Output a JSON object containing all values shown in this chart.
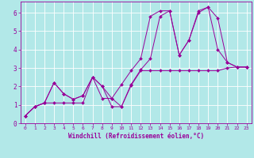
{
  "title": "",
  "xlabel": "Windchill (Refroidissement éolien,°C)",
  "ylabel": "",
  "background_color": "#b2e8e8",
  "grid_color": "#ffffff",
  "line_color": "#990099",
  "marker_color": "#990099",
  "xlim": [
    -0.5,
    23.5
  ],
  "ylim": [
    0,
    6.6
  ],
  "xticks": [
    0,
    1,
    2,
    3,
    4,
    5,
    6,
    7,
    8,
    9,
    10,
    11,
    12,
    13,
    14,
    15,
    16,
    17,
    18,
    19,
    20,
    21,
    22,
    23
  ],
  "yticks": [
    0,
    1,
    2,
    3,
    4,
    5,
    6
  ],
  "series": [
    [
      0.4,
      0.9,
      1.1,
      2.2,
      1.6,
      1.3,
      1.5,
      2.5,
      2.0,
      1.35,
      0.9,
      2.1,
      2.9,
      3.5,
      5.8,
      6.1,
      3.7,
      4.5,
      6.1,
      6.3,
      4.0,
      3.3,
      3.05,
      3.05
    ],
    [
      0.4,
      0.9,
      1.1,
      1.1,
      1.1,
      1.1,
      1.1,
      2.5,
      2.0,
      0.9,
      0.9,
      2.05,
      2.85,
      2.85,
      2.85,
      2.85,
      2.85,
      2.85,
      2.85,
      2.85,
      2.85,
      3.0,
      3.05,
      3.05
    ],
    [
      0.4,
      0.9,
      1.1,
      2.2,
      1.6,
      1.3,
      1.5,
      2.5,
      1.35,
      1.35,
      2.1,
      2.85,
      3.5,
      5.8,
      6.1,
      6.1,
      3.7,
      4.5,
      6.0,
      6.3,
      5.7,
      3.3,
      3.05,
      3.05
    ]
  ],
  "x_values": [
    0,
    1,
    2,
    3,
    4,
    5,
    6,
    7,
    8,
    9,
    10,
    11,
    12,
    13,
    14,
    15,
    16,
    17,
    18,
    19,
    20,
    21,
    22,
    23
  ],
  "xlabel_fontsize": 5.5,
  "tick_fontsize": 4.5,
  "linewidth": 0.7,
  "markersize": 2.0
}
